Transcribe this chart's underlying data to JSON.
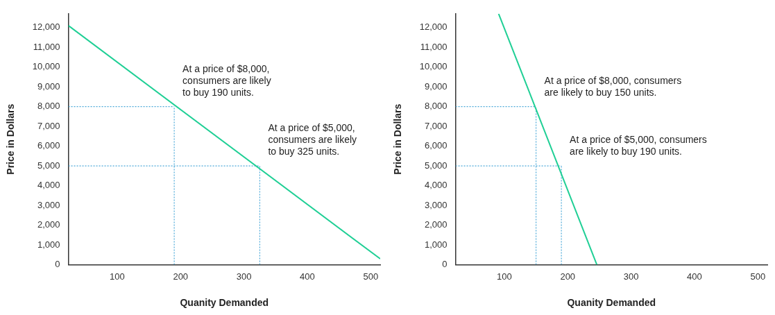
{
  "chart_data": [
    {
      "type": "line",
      "xlabel": "Quanity Demanded",
      "ylabel": "Price in Dollars",
      "xlim": [
        23,
        515
      ],
      "ylim": [
        0,
        12700
      ],
      "xticks": [
        100,
        200,
        300,
        400,
        500
      ],
      "yticks": [
        0,
        {
          "value": 1000,
          "label": "1,000"
        },
        {
          "value": 2000,
          "label": "2,000"
        },
        {
          "value": 3000,
          "label": "3,000"
        },
        {
          "value": 4000,
          "label": "4,000"
        },
        {
          "value": 5000,
          "label": "5,000"
        },
        {
          "value": 6000,
          "label": "6,000"
        },
        {
          "value": 7000,
          "label": "7,000"
        },
        {
          "value": 8000,
          "label": "8,000"
        },
        {
          "value": 9000,
          "label": "9,000"
        },
        {
          "value": 10000,
          "label": "10,000"
        },
        {
          "value": 11000,
          "label": "11,000"
        },
        {
          "value": 12000,
          "label": "12,000"
        }
      ],
      "grid": false,
      "legend": false,
      "marker": "none",
      "series": [
        {
          "type": "line",
          "color": "#1fcf95",
          "line_style": "solid",
          "x": [
            23,
            515
          ],
          "values": [
            12100,
            300
          ]
        },
        {
          "type": "line",
          "color": "#4aa8d8",
          "line_style": "dotted",
          "x": [
            23,
            190
          ],
          "values": [
            8000,
            8000
          ]
        },
        {
          "type": "line",
          "color": "#4aa8d8",
          "line_style": "dotted",
          "x": [
            190,
            190
          ],
          "values": [
            0,
            8000
          ]
        },
        {
          "type": "line",
          "color": "#4aa8d8",
          "line_style": "dotted",
          "x": [
            23,
            325
          ],
          "values": [
            5000,
            5000
          ]
        },
        {
          "type": "line",
          "color": "#4aa8d8",
          "line_style": "dotted",
          "x": [
            325,
            325
          ],
          "values": [
            0,
            5000
          ]
        }
      ],
      "annotations": [
        {
          "text": "At a price of $8,000,\nconsumers are likely\nto buy 190 units.",
          "x": 190,
          "y": 8000
        },
        {
          "text": "At a price of $5,000,\nconsumers are likely\nto buy 325 units.",
          "x": 325,
          "y": 5000
        }
      ]
    },
    {
      "type": "line",
      "xlabel": "Quanity Demanded",
      "ylabel": "Price in Dollars",
      "xlim": [
        23,
        515
      ],
      "ylim": [
        0,
        12700
      ],
      "xticks": [
        100,
        200,
        300,
        400,
        500
      ],
      "yticks": [
        0,
        {
          "value": 1000,
          "label": "1,000"
        },
        {
          "value": 2000,
          "label": "2,000"
        },
        {
          "value": 3000,
          "label": "3,000"
        },
        {
          "value": 4000,
          "label": "4,000"
        },
        {
          "value": 5000,
          "label": "5,000"
        },
        {
          "value": 6000,
          "label": "6,000"
        },
        {
          "value": 7000,
          "label": "7,000"
        },
        {
          "value": 8000,
          "label": "8,000"
        },
        {
          "value": 9000,
          "label": "9,000"
        },
        {
          "value": 10000,
          "label": "10,000"
        },
        {
          "value": 11000,
          "label": "11,000"
        },
        {
          "value": 12000,
          "label": "12,000"
        }
      ],
      "grid": false,
      "legend": false,
      "marker": "none",
      "series": [
        {
          "type": "line",
          "color": "#1fcf95",
          "line_style": "solid",
          "x": [
            91,
            246
          ],
          "values": [
            12700,
            0
          ]
        },
        {
          "type": "line",
          "color": "#4aa8d8",
          "line_style": "dotted",
          "x": [
            23,
            150
          ],
          "values": [
            8000,
            8000
          ]
        },
        {
          "type": "line",
          "color": "#4aa8d8",
          "line_style": "dotted",
          "x": [
            150,
            150
          ],
          "values": [
            0,
            8000
          ]
        },
        {
          "type": "line",
          "color": "#4aa8d8",
          "line_style": "dotted",
          "x": [
            23,
            190
          ],
          "values": [
            5000,
            5000
          ]
        },
        {
          "type": "line",
          "color": "#4aa8d8",
          "line_style": "dotted",
          "x": [
            190,
            190
          ],
          "values": [
            0,
            5000
          ]
        }
      ],
      "annotations": [
        {
          "text": "At a price of $8,000, consumers\nare likely to buy 150 units.",
          "x": 150,
          "y": 8000
        },
        {
          "text": "At a price of $5,000, consumers\nare likely to buy 190 units.",
          "x": 190,
          "y": 5000
        }
      ]
    }
  ]
}
